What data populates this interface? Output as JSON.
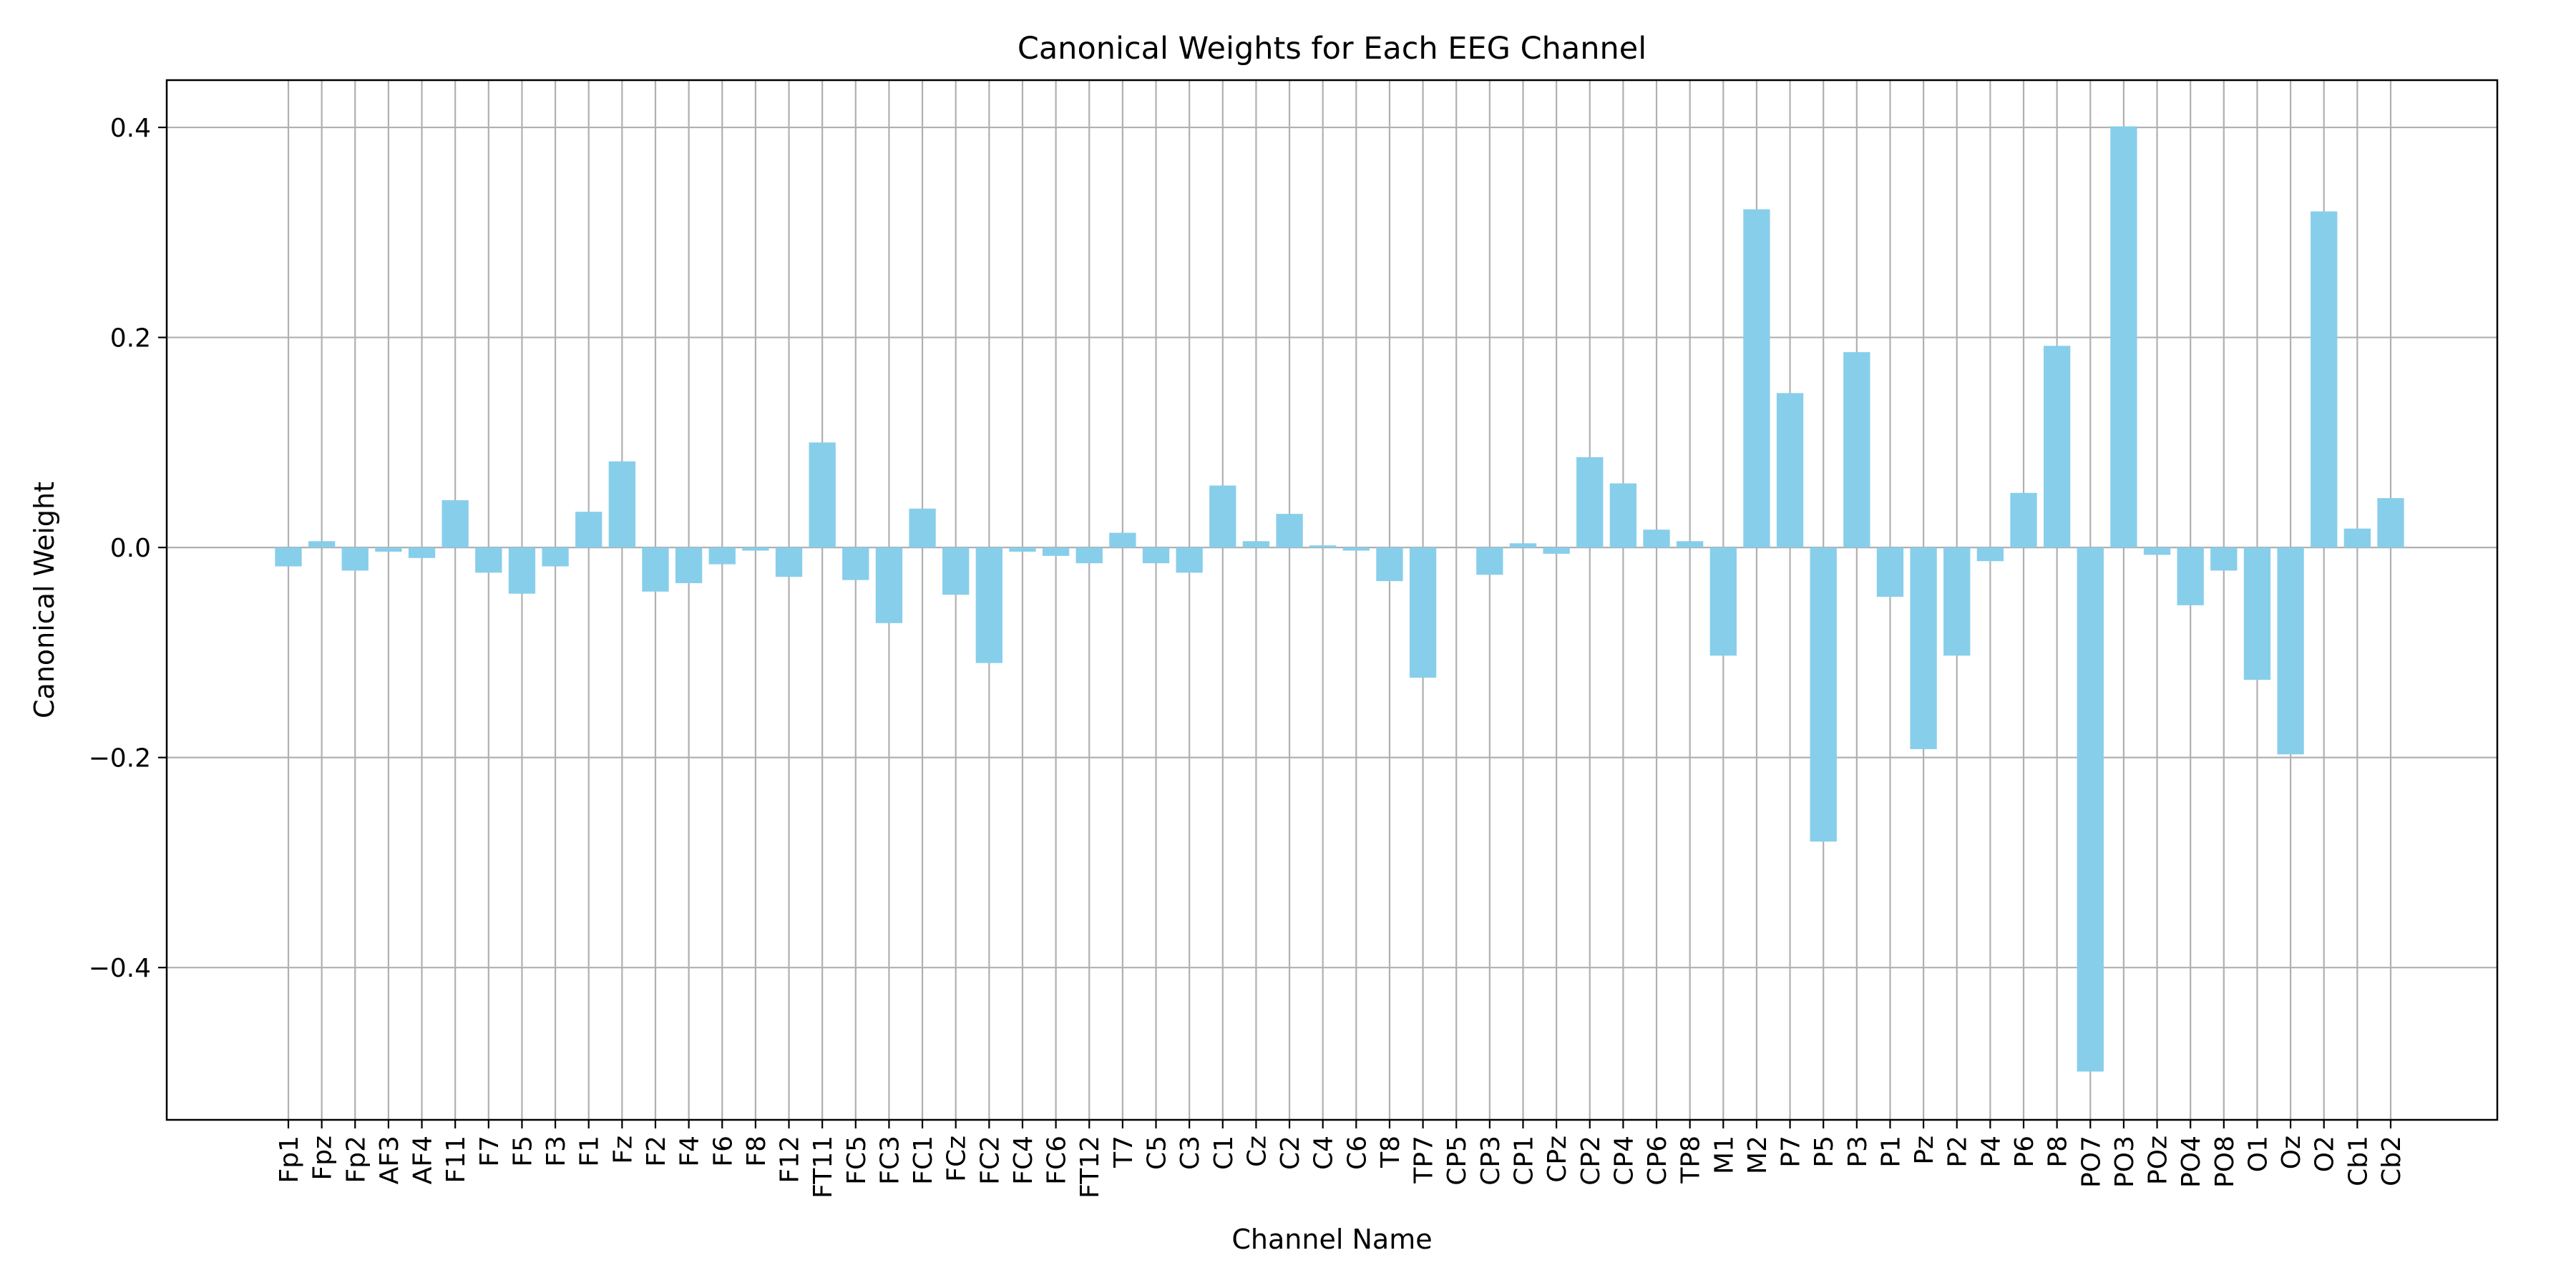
{
  "chart_data": {
    "type": "bar",
    "title": "Canonical Weights for Each EEG Channel",
    "xlabel": "Channel Name",
    "ylabel": "Canonical Weight",
    "ylim": [
      -0.545,
      0.445
    ],
    "yticks": [
      0.4,
      0.2,
      0.0,
      -0.2,
      -0.4
    ],
    "ytick_labels": [
      "0.4",
      "0.2",
      "0.0",
      "−0.2",
      "−0.4"
    ],
    "grid": true,
    "bar_color": "#87ceeb",
    "grid_color": "#b0b0b0",
    "categories": [
      "Fp1",
      "Fpz",
      "Fp2",
      "AF3",
      "AF4",
      "F11",
      "F7",
      "F5",
      "F3",
      "F1",
      "Fz",
      "F2",
      "F4",
      "F6",
      "F8",
      "F12",
      "FT11",
      "FC5",
      "FC3",
      "FC1",
      "FCz",
      "FC2",
      "FC4",
      "FC6",
      "FT12",
      "T7",
      "C5",
      "C3",
      "C1",
      "Cz",
      "C2",
      "C4",
      "C6",
      "T8",
      "TP7",
      "CP5",
      "CP3",
      "CP1",
      "CPz",
      "CP2",
      "CP4",
      "CP6",
      "TP8",
      "M1",
      "M2",
      "P7",
      "P5",
      "P3",
      "P1",
      "Pz",
      "P2",
      "P4",
      "P6",
      "P8",
      "PO7",
      "PO3",
      "POz",
      "PO4",
      "PO8",
      "O1",
      "Oz",
      "O2",
      "Cb1",
      "Cb2"
    ],
    "values": [
      -0.018,
      0.006,
      -0.022,
      -0.004,
      -0.01,
      0.045,
      -0.024,
      -0.044,
      -0.018,
      0.034,
      0.082,
      -0.042,
      -0.034,
      -0.016,
      -0.003,
      -0.028,
      0.1,
      -0.031,
      -0.072,
      0.037,
      -0.045,
      -0.11,
      -0.004,
      -0.008,
      -0.015,
      0.014,
      -0.015,
      -0.024,
      0.059,
      0.006,
      0.032,
      0.002,
      -0.003,
      -0.032,
      -0.124,
      0.0,
      -0.026,
      0.004,
      -0.006,
      0.086,
      0.061,
      0.017,
      0.006,
      -0.103,
      0.322,
      0.147,
      -0.28,
      0.186,
      -0.047,
      -0.192,
      -0.103,
      -0.013,
      0.052,
      0.192,
      -0.499,
      0.401,
      -0.007,
      -0.055,
      -0.022,
      -0.126,
      -0.197,
      0.32,
      0.018,
      0.047
    ]
  }
}
